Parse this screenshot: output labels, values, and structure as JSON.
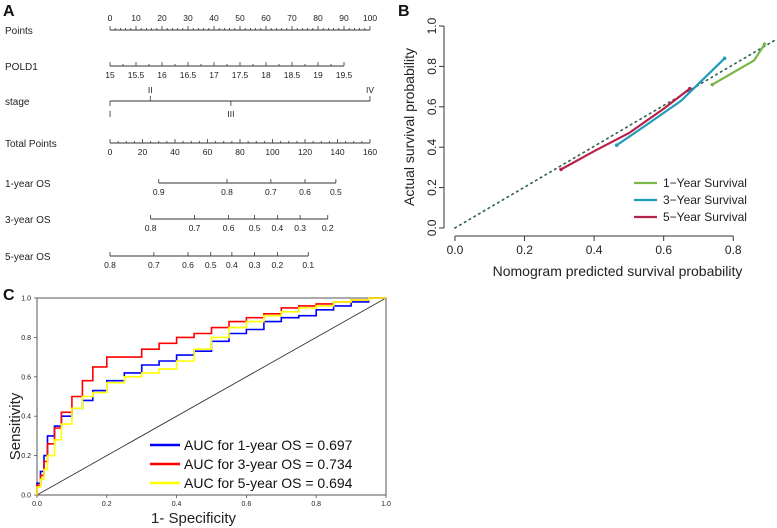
{
  "panels": {
    "a": {
      "letter": "A"
    },
    "b": {
      "letter": "B"
    },
    "c": {
      "letter": "C"
    }
  },
  "chart_data": [
    {
      "panel": "A",
      "type": "nomogram",
      "title": "",
      "rows": [
        {
          "label": "Points",
          "ticks": [
            "0",
            "10",
            "20",
            "30",
            "40",
            "50",
            "60",
            "70",
            "80",
            "90",
            "100"
          ],
          "values": [
            0,
            10,
            20,
            30,
            40,
            50,
            60,
            70,
            80,
            90,
            100
          ],
          "domain": [
            0,
            100
          ]
        },
        {
          "label": "POLD1",
          "ticks": [
            "15",
            "15.5",
            "16",
            "16.5",
            "17",
            "17.5",
            "18",
            "18.5",
            "19",
            "19.5"
          ],
          "values": [
            15,
            15.5,
            16,
            16.5,
            17,
            17.5,
            18,
            18.5,
            19,
            19.5
          ],
          "points_range": [
            0,
            90
          ]
        },
        {
          "label": "stage",
          "above_ticks": [
            "II",
            "IV"
          ],
          "above_points": [
            15.5,
            100
          ],
          "below_ticks": [
            "I",
            "III"
          ],
          "below_points": [
            0,
            46.5
          ]
        },
        {
          "label": "Total Points",
          "ticks": [
            "0",
            "20",
            "40",
            "60",
            "80",
            "100",
            "120",
            "140",
            "160"
          ],
          "values": [
            0,
            20,
            40,
            60,
            80,
            100,
            120,
            140,
            160
          ],
          "domain": [
            0,
            160
          ]
        },
        {
          "label": "1-year OS",
          "ticks": [
            "0.9",
            "0.8",
            "0.7",
            "0.6",
            "0.5"
          ],
          "values": [
            0.9,
            0.8,
            0.7,
            0.6,
            0.5
          ],
          "total_points": [
            30,
            72,
            99,
            120,
            139
          ]
        },
        {
          "label": "3-year OS",
          "ticks": [
            "0.8",
            "0.7",
            "0.6",
            "0.5",
            "0.4",
            "0.3",
            "0.2"
          ],
          "values": [
            0.8,
            0.7,
            0.6,
            0.5,
            0.4,
            0.3,
            0.2
          ],
          "total_points": [
            25,
            52,
            73,
            89,
            103,
            117,
            134
          ]
        },
        {
          "label": "5-year OS",
          "ticks": [
            "0.8",
            "0.7",
            "0.6",
            "0.5",
            "0.4",
            "0.3",
            "0.2",
            "0.1"
          ],
          "values": [
            0.8,
            0.7,
            0.6,
            0.5,
            0.4,
            0.3,
            0.2,
            0.1
          ],
          "total_points": [
            0,
            27,
            48,
            62,
            75,
            89,
            103,
            122
          ]
        }
      ]
    },
    {
      "panel": "B",
      "type": "line",
      "title": "",
      "xlabel": "Nomogram predicted survival probability",
      "ylabel": "Actual survival probability",
      "xlim": [
        -0.02,
        0.92
      ],
      "ylim": [
        -0.02,
        1.02
      ],
      "xticks": [
        "0.0",
        "0.2",
        "0.4",
        "0.6",
        "0.8"
      ],
      "xtick_values": [
        0,
        0.2,
        0.4,
        0.6,
        0.8
      ],
      "yticks": [
        "0.0",
        "0.2",
        "0.4",
        "0.6",
        "0.8",
        "1.0"
      ],
      "ytick_values": [
        0,
        0.2,
        0.4,
        0.6,
        0.8,
        1.0
      ],
      "reference_line": {
        "from": [
          0,
          0
        ],
        "to": [
          0.92,
          0.93
        ],
        "style": "dotted"
      },
      "legend_position": "bottom-right",
      "series": [
        {
          "name": "1−Year Survival",
          "color": "#7ab648",
          "x": [
            0.74,
            0.78,
            0.82,
            0.86,
            0.89
          ],
          "y": [
            0.71,
            0.75,
            0.79,
            0.83,
            0.91
          ]
        },
        {
          "name": "3−Year Survival",
          "color": "#1f9bb8",
          "x": [
            0.465,
            0.55,
            0.65,
            0.775
          ],
          "y": [
            0.41,
            0.51,
            0.63,
            0.84
          ]
        },
        {
          "name": "5−Year Survival",
          "color": "#b5234d",
          "x": [
            0.305,
            0.4,
            0.5,
            0.6,
            0.675
          ],
          "y": [
            0.29,
            0.38,
            0.47,
            0.59,
            0.69
          ]
        }
      ]
    },
    {
      "panel": "C",
      "type": "line",
      "title": "",
      "xlabel": "1- Specificity",
      "ylabel": "Sensitivity",
      "xlim": [
        0,
        1
      ],
      "ylim": [
        0,
        1
      ],
      "xticks": [
        "0.0",
        "0.2",
        "0.4",
        "0.6",
        "0.8",
        "1.0"
      ],
      "xtick_values": [
        0,
        0.2,
        0.4,
        0.6,
        0.8,
        1.0
      ],
      "yticks": [
        "0.0",
        "0.2",
        "0.4",
        "0.6",
        "0.8",
        "1.0"
      ],
      "ytick_values": [
        0,
        0.2,
        0.4,
        0.6,
        0.8,
        1.0
      ],
      "reference_line": {
        "from": [
          0,
          0
        ],
        "to": [
          1,
          1
        ],
        "style": "solid"
      },
      "legend_position": "bottom-right",
      "series": [
        {
          "name": "AUC for 1-year OS = 0.697",
          "color": "#0000ff",
          "x": [
            0,
            0.01,
            0.02,
            0.03,
            0.05,
            0.07,
            0.1,
            0.13,
            0.16,
            0.2,
            0.25,
            0.3,
            0.35,
            0.4,
            0.45,
            0.5,
            0.55,
            0.6,
            0.65,
            0.7,
            0.75,
            0.8,
            0.85,
            0.9,
            0.95,
            1.0
          ],
          "y": [
            0,
            0.06,
            0.12,
            0.2,
            0.3,
            0.35,
            0.4,
            0.44,
            0.48,
            0.53,
            0.58,
            0.62,
            0.66,
            0.68,
            0.71,
            0.73,
            0.78,
            0.82,
            0.84,
            0.88,
            0.9,
            0.91,
            0.94,
            0.96,
            0.98,
            1.0
          ]
        },
        {
          "name": "AUC for 3-year OS = 0.734",
          "color": "#ff0000",
          "x": [
            0,
            0.01,
            0.02,
            0.03,
            0.05,
            0.07,
            0.1,
            0.13,
            0.16,
            0.2,
            0.25,
            0.3,
            0.35,
            0.4,
            0.45,
            0.5,
            0.55,
            0.6,
            0.65,
            0.7,
            0.75,
            0.8,
            0.85,
            0.9,
            0.95,
            1.0
          ],
          "y": [
            0,
            0.05,
            0.1,
            0.17,
            0.26,
            0.34,
            0.42,
            0.5,
            0.58,
            0.65,
            0.7,
            0.7,
            0.74,
            0.77,
            0.8,
            0.82,
            0.85,
            0.88,
            0.9,
            0.92,
            0.95,
            0.96,
            0.97,
            0.98,
            0.99,
            1.0
          ]
        },
        {
          "name": "AUC for 5-year OS = 0.694",
          "color": "#ffff00",
          "x": [
            0,
            0.01,
            0.02,
            0.03,
            0.05,
            0.07,
            0.1,
            0.13,
            0.16,
            0.2,
            0.25,
            0.3,
            0.35,
            0.4,
            0.45,
            0.5,
            0.55,
            0.6,
            0.65,
            0.7,
            0.75,
            0.8,
            0.85,
            0.9,
            0.95,
            1.0
          ],
          "y": [
            0,
            0.04,
            0.08,
            0.13,
            0.2,
            0.28,
            0.36,
            0.44,
            0.5,
            0.52,
            0.57,
            0.6,
            0.62,
            0.64,
            0.68,
            0.74,
            0.8,
            0.85,
            0.88,
            0.91,
            0.93,
            0.95,
            0.96,
            0.98,
            0.99,
            1.0
          ]
        }
      ]
    }
  ]
}
